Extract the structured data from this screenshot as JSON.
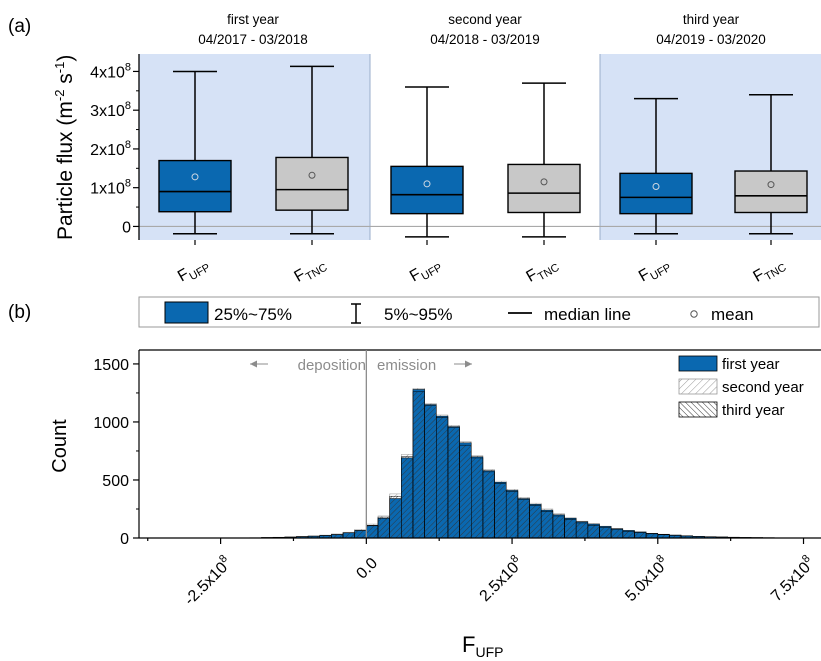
{
  "panel_a_label": "(a)",
  "panel_b_label": "(b)",
  "colors": {
    "blue": "#0a68b0",
    "gray": "#c8c8c8",
    "year_band": "#d6e2f6",
    "zero_line": "#a9a9a9",
    "annotation": "#8c8c8c"
  },
  "legend": {
    "box_label": "25%~75%",
    "whisker_label": "5%~95%",
    "median_label": "median line",
    "mean_label": "mean"
  },
  "chart_data": [
    {
      "type": "box",
      "ylabel_main": "Particle flux (m",
      "ylabel_exp1": "-2",
      "ylabel_mid": " s",
      "ylabel_exp2": "-1",
      "ylabel_end": ")",
      "ytick_mantissas": [
        "0",
        "1x10",
        "2x10",
        "3x10",
        "4x10"
      ],
      "ytick_exponent": "8",
      "yticks": [
        0,
        100000000,
        200000000,
        300000000,
        400000000
      ],
      "ylim": [
        -35000000,
        445000000
      ],
      "periods": [
        {
          "title": "first year",
          "range": "04/2017 - 03/2018",
          "shaded": true
        },
        {
          "title": "second year",
          "range": "04/2018 - 03/2019",
          "shaded": false
        },
        {
          "title": "third year",
          "range": "04/2019 - 03/2020",
          "shaded": true
        }
      ],
      "series": [
        {
          "name_main": "F",
          "name_sub": "UFP",
          "period": 0,
          "p5": -19000000,
          "q1": 38000000,
          "median": 90000000,
          "q3": 170000000,
          "p95": 400000000,
          "mean": 128000000
        },
        {
          "name_main": "F",
          "name_sub": "TNC",
          "period": 0,
          "p5": -19000000,
          "q1": 42000000,
          "median": 95000000,
          "q3": 178000000,
          "p95": 413000000,
          "mean": 132000000
        },
        {
          "name_main": "F",
          "name_sub": "UFP",
          "period": 1,
          "p5": -27000000,
          "q1": 33000000,
          "median": 82000000,
          "q3": 155000000,
          "p95": 360000000,
          "mean": 110000000
        },
        {
          "name_main": "F",
          "name_sub": "TNC",
          "period": 1,
          "p5": -27000000,
          "q1": 36000000,
          "median": 86000000,
          "q3": 160000000,
          "p95": 370000000,
          "mean": 115000000
        },
        {
          "name_main": "F",
          "name_sub": "UFP",
          "period": 2,
          "p5": -19000000,
          "q1": 33000000,
          "median": 75000000,
          "q3": 137000000,
          "p95": 330000000,
          "mean": 103000000
        },
        {
          "name_main": "F",
          "name_sub": "TNC",
          "period": 2,
          "p5": -19000000,
          "q1": 36000000,
          "median": 79000000,
          "q3": 143000000,
          "p95": 340000000,
          "mean": 108000000
        }
      ]
    },
    {
      "type": "histogram",
      "xlabel_main": "F",
      "xlabel_sub": "UFP",
      "ylabel": "Count",
      "xlim": [
        -390000000,
        780000000
      ],
      "ylim": [
        0,
        1620
      ],
      "yticks": [
        0,
        500,
        1000,
        1500
      ],
      "ytick_labels": [
        "0",
        "500",
        "1000",
        "1500"
      ],
      "xticks": [
        -250000000,
        0,
        250000000,
        500000000,
        750000000
      ],
      "xtick_mantissas": [
        "-2.5x10",
        "0.0",
        "2.5x10",
        "5.0x10",
        "7.5x10"
      ],
      "xtick_has_exp": [
        true,
        false,
        true,
        true,
        true
      ],
      "xtick_exponent": "8",
      "annotation_left": "deposition",
      "annotation_right": "emission",
      "bin_start": -200000000,
      "bin_width": 20000000,
      "series": [
        {
          "name": "first year",
          "style": "solid",
          "values": [
            2,
            4,
            6,
            8,
            12,
            16,
            22,
            30,
            45,
            65,
            105,
            170,
            340,
            690,
            1280,
            1150,
            1050,
            960,
            820,
            700,
            580,
            480,
            410,
            340,
            290,
            240,
            200,
            170,
            140,
            120,
            100,
            80,
            65,
            52,
            40,
            32,
            25,
            19,
            14,
            11,
            9,
            7,
            5,
            4,
            3,
            2,
            1,
            1,
            1,
            1
          ]
        },
        {
          "name": "second year",
          "style": "light-hatch",
          "values": [
            3,
            5,
            7,
            10,
            14,
            18,
            25,
            35,
            50,
            75,
            120,
            190,
            380,
            720,
            1290,
            1160,
            1060,
            970,
            830,
            710,
            590,
            490,
            420,
            350,
            300,
            250,
            210,
            175,
            145,
            125,
            102,
            82,
            66,
            53,
            41,
            33,
            26,
            20,
            15,
            12,
            9,
            7,
            5,
            4,
            3,
            2,
            1,
            1,
            1,
            1
          ]
        },
        {
          "name": "third year",
          "style": "dense-hatch",
          "values": [
            2,
            4,
            6,
            8,
            12,
            16,
            22,
            30,
            45,
            65,
            110,
            180,
            360,
            700,
            1260,
            1140,
            1040,
            950,
            800,
            690,
            570,
            470,
            400,
            330,
            280,
            230,
            190,
            160,
            130,
            110,
            90,
            72,
            58,
            46,
            36,
            28,
            22,
            17,
            13,
            10,
            8,
            6,
            4,
            3,
            2,
            2,
            1,
            1,
            1,
            1
          ]
        }
      ]
    }
  ]
}
